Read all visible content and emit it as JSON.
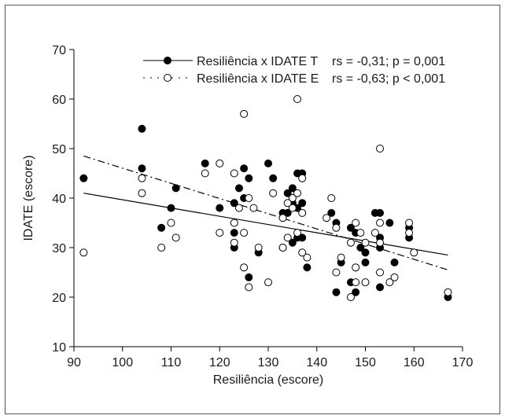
{
  "chart_data": {
    "type": "scatter",
    "xlabel": "Resiliência (escore)",
    "ylabel": "IDATE (escore)",
    "xlim": [
      90,
      170
    ],
    "ylim": [
      10,
      70
    ],
    "xticks": [
      90,
      100,
      110,
      120,
      130,
      140,
      150,
      160,
      170
    ],
    "yticks": [
      10,
      20,
      30,
      40,
      50,
      60,
      70
    ],
    "grid": false,
    "legend_position": "top-right",
    "series": [
      {
        "name": "Resiliência x IDATE T",
        "stat": "rs = -0,31; p = 0,001",
        "marker": "filled-circle",
        "line_style": "solid",
        "color": "#000000",
        "trend": {
          "x": [
            92,
            167
          ],
          "y": [
            41,
            28.5
          ]
        },
        "points": [
          [
            92,
            44
          ],
          [
            104,
            54
          ],
          [
            104,
            46
          ],
          [
            108,
            34
          ],
          [
            110,
            38
          ],
          [
            111,
            42
          ],
          [
            117,
            47
          ],
          [
            120,
            38
          ],
          [
            123,
            39
          ],
          [
            123,
            33
          ],
          [
            123,
            30
          ],
          [
            124,
            42
          ],
          [
            125,
            46
          ],
          [
            125,
            40
          ],
          [
            126,
            44
          ],
          [
            126,
            24
          ],
          [
            128,
            29
          ],
          [
            130,
            47
          ],
          [
            131,
            44
          ],
          [
            133,
            37
          ],
          [
            133,
            30
          ],
          [
            134,
            41
          ],
          [
            134,
            37
          ],
          [
            135,
            42
          ],
          [
            135,
            39
          ],
          [
            135,
            31
          ],
          [
            136,
            45
          ],
          [
            136,
            38
          ],
          [
            136,
            32
          ],
          [
            137,
            45
          ],
          [
            137,
            39
          ],
          [
            137,
            32
          ],
          [
            138,
            26
          ],
          [
            143,
            37
          ],
          [
            144,
            35
          ],
          [
            144,
            21
          ],
          [
            145,
            27
          ],
          [
            147,
            34
          ],
          [
            147,
            23
          ],
          [
            148,
            33
          ],
          [
            148,
            21
          ],
          [
            149,
            30
          ],
          [
            150,
            29
          ],
          [
            150,
            27
          ],
          [
            152,
            37
          ],
          [
            153,
            37
          ],
          [
            153,
            32
          ],
          [
            153,
            30
          ],
          [
            153,
            22
          ],
          [
            155,
            35
          ],
          [
            156,
            27
          ],
          [
            159,
            34
          ],
          [
            159,
            32
          ],
          [
            167,
            20
          ]
        ]
      },
      {
        "name": "Resiliência x IDATE E",
        "stat": "rs = -0,63; p < 0,001",
        "marker": "open-circle",
        "line_style": "dashed",
        "color": "#000000",
        "trend": {
          "x": [
            92,
            167
          ],
          "y": [
            48.5,
            25.5
          ]
        },
        "points": [
          [
            92,
            29
          ],
          [
            104,
            44
          ],
          [
            104,
            41
          ],
          [
            108,
            30
          ],
          [
            110,
            35
          ],
          [
            111,
            32
          ],
          [
            117,
            45
          ],
          [
            120,
            47
          ],
          [
            120,
            33
          ],
          [
            123,
            45
          ],
          [
            123,
            35
          ],
          [
            123,
            31
          ],
          [
            124,
            38
          ],
          [
            125,
            57
          ],
          [
            125,
            33
          ],
          [
            125,
            26
          ],
          [
            126,
            40
          ],
          [
            126,
            22
          ],
          [
            127,
            38
          ],
          [
            128,
            30
          ],
          [
            130,
            23
          ],
          [
            131,
            41
          ],
          [
            133,
            36
          ],
          [
            133,
            30
          ],
          [
            134,
            39
          ],
          [
            134,
            32
          ],
          [
            135,
            40
          ],
          [
            135,
            38
          ],
          [
            136,
            60
          ],
          [
            136,
            41
          ],
          [
            136,
            33
          ],
          [
            137,
            44
          ],
          [
            137,
            37
          ],
          [
            137,
            29
          ],
          [
            138,
            28
          ],
          [
            142,
            36
          ],
          [
            143,
            40
          ],
          [
            144,
            34
          ],
          [
            144,
            25
          ],
          [
            145,
            28
          ],
          [
            147,
            31
          ],
          [
            147,
            20
          ],
          [
            148,
            35
          ],
          [
            148,
            26
          ],
          [
            148,
            23
          ],
          [
            149,
            33
          ],
          [
            150,
            31
          ],
          [
            150,
            23
          ],
          [
            152,
            33
          ],
          [
            153,
            50
          ],
          [
            153,
            35
          ],
          [
            153,
            31
          ],
          [
            153,
            25
          ],
          [
            155,
            23
          ],
          [
            156,
            24
          ],
          [
            159,
            35
          ],
          [
            159,
            33
          ],
          [
            160,
            29
          ],
          [
            167,
            21
          ]
        ]
      }
    ]
  }
}
